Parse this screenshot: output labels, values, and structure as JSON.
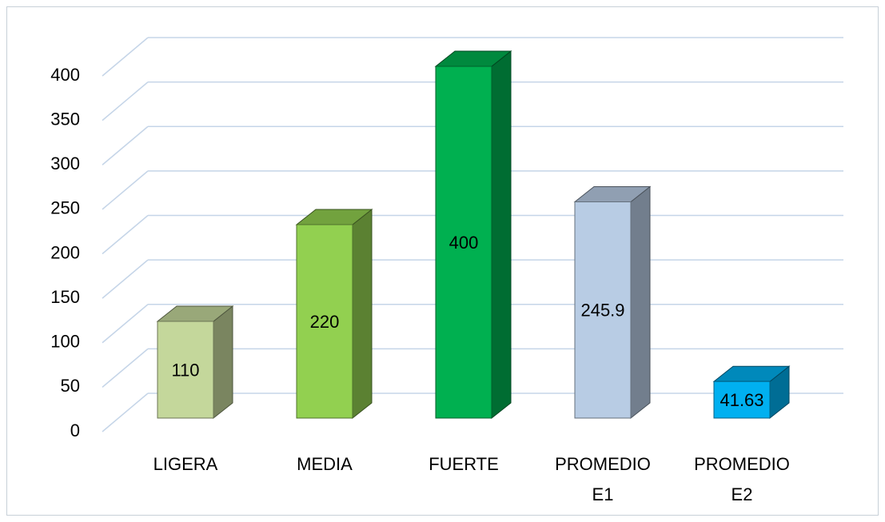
{
  "chart_data": {
    "type": "bar3d",
    "categories": [
      "LIGERA",
      "MEDIA",
      "FUERTE",
      "PROMEDIO E1",
      "PROMEDIO E2"
    ],
    "values": [
      110,
      220,
      400,
      245.9,
      41.63
    ],
    "colors": [
      "#c4d79b",
      "#92d050",
      "#00b050",
      "#b8cce4",
      "#00b0f0"
    ],
    "ylim": [
      0,
      400
    ],
    "yticks": [
      0,
      50,
      100,
      150,
      200,
      250,
      300,
      350,
      400
    ],
    "grid": true
  }
}
